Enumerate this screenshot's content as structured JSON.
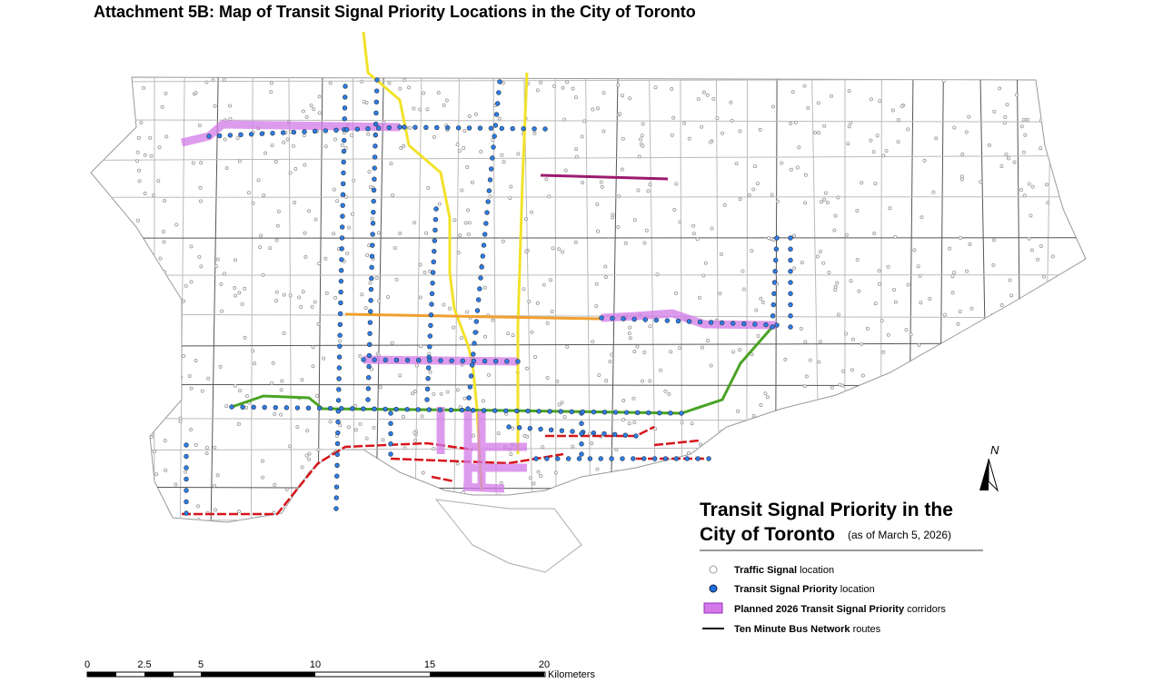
{
  "title": "Attachment 5B: Map of Transit Signal Priority Locations in the City of Toronto",
  "legend": {
    "title_line1": "Transit Signal Priority in the",
    "title_line2": "City of Toronto",
    "date": "(as of March 5, 2026)",
    "items": [
      {
        "bold": "Traffic Signal",
        "text": "location"
      },
      {
        "bold": "Transit Signal Priority",
        "text": "location"
      },
      {
        "bold": "Planned 2026 Transit Signal Priority",
        "text": "corridors"
      },
      {
        "bold": "Ten Minute Bus Network",
        "text": "routes"
      }
    ]
  },
  "scale_bar": {
    "labels": [
      "0",
      "2.5",
      "5",
      "10",
      "15",
      "20"
    ],
    "unit": "Kilometers"
  },
  "north_arrow": "N"
}
